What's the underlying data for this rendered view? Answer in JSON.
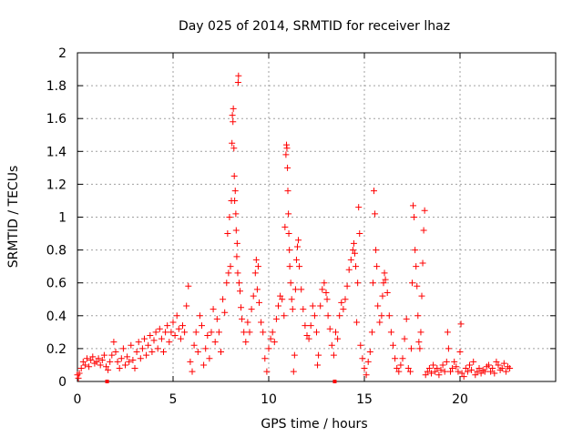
{
  "chart_data": {
    "type": "scatter",
    "title": "Day 025 of 2014, SRMTID for receiver lhaz",
    "xlabel": "GPS time / hours",
    "ylabel": "SRMTID / TECUs",
    "xlim": [
      0,
      25
    ],
    "ylim": [
      0,
      2
    ],
    "xticks": [
      0,
      5,
      10,
      15,
      20
    ],
    "xtick_labels": [
      "0",
      "5",
      "10",
      "15",
      "20"
    ],
    "yticks": [
      0,
      0.2,
      0.4,
      0.6,
      0.8,
      1,
      1.2,
      1.4,
      1.6,
      1.8,
      2
    ],
    "ytick_labels": [
      "0",
      "0.2",
      "0.4",
      "0.6",
      "0.8",
      "1",
      "1.2",
      "1.4",
      "1.6",
      "1.8",
      "2"
    ],
    "grid": true,
    "marker": "+",
    "color": "#ff0000",
    "series": [
      {
        "name": "SRMTID",
        "points": [
          [
            0.0,
            0.04
          ],
          [
            0.05,
            0.02
          ],
          [
            0.1,
            0.05
          ],
          [
            0.2,
            0.08
          ],
          [
            0.3,
            0.12
          ],
          [
            0.4,
            0.1
          ],
          [
            0.5,
            0.14
          ],
          [
            0.6,
            0.09
          ],
          [
            0.7,
            0.13
          ],
          [
            0.8,
            0.15
          ],
          [
            0.9,
            0.11
          ],
          [
            1.0,
            0.12
          ],
          [
            1.1,
            0.14
          ],
          [
            1.2,
            0.1
          ],
          [
            1.3,
            0.13
          ],
          [
            1.4,
            0.16
          ],
          [
            1.5,
            0.09
          ],
          [
            1.6,
            0.07
          ],
          [
            1.7,
            0.12
          ],
          [
            1.8,
            0.16
          ],
          [
            1.9,
            0.24
          ],
          [
            2.0,
            0.18
          ],
          [
            2.1,
            0.12
          ],
          [
            2.2,
            0.08
          ],
          [
            2.3,
            0.14
          ],
          [
            2.4,
            0.2
          ],
          [
            2.5,
            0.1
          ],
          [
            2.6,
            0.15
          ],
          [
            2.7,
            0.12
          ],
          [
            2.8,
            0.22
          ],
          [
            2.9,
            0.13
          ],
          [
            3.0,
            0.08
          ],
          [
            3.1,
            0.18
          ],
          [
            3.2,
            0.24
          ],
          [
            3.3,
            0.14
          ],
          [
            3.4,
            0.2
          ],
          [
            3.5,
            0.26
          ],
          [
            3.6,
            0.16
          ],
          [
            3.7,
            0.22
          ],
          [
            3.8,
            0.28
          ],
          [
            3.9,
            0.18
          ],
          [
            4.0,
            0.25
          ],
          [
            4.1,
            0.3
          ],
          [
            4.2,
            0.2
          ],
          [
            4.3,
            0.32
          ],
          [
            4.4,
            0.26
          ],
          [
            4.5,
            0.18
          ],
          [
            4.6,
            0.3
          ],
          [
            4.7,
            0.34
          ],
          [
            4.8,
            0.24
          ],
          [
            4.9,
            0.3
          ],
          [
            5.0,
            0.36
          ],
          [
            5.1,
            0.28
          ],
          [
            5.2,
            0.4
          ],
          [
            5.3,
            0.32
          ],
          [
            5.4,
            0.26
          ],
          [
            5.5,
            0.34
          ],
          [
            5.6,
            0.3
          ],
          [
            5.7,
            0.46
          ],
          [
            5.8,
            0.58
          ],
          [
            5.9,
            0.12
          ],
          [
            6.0,
            0.06
          ],
          [
            6.1,
            0.22
          ],
          [
            6.2,
            0.3
          ],
          [
            6.3,
            0.18
          ],
          [
            6.4,
            0.4
          ],
          [
            6.5,
            0.34
          ],
          [
            6.6,
            0.1
          ],
          [
            6.7,
            0.2
          ],
          [
            6.8,
            0.28
          ],
          [
            6.9,
            0.14
          ],
          [
            7.0,
            0.3
          ],
          [
            7.1,
            0.44
          ],
          [
            7.2,
            0.24
          ],
          [
            7.3,
            0.38
          ],
          [
            7.4,
            0.3
          ],
          [
            7.5,
            0.18
          ],
          [
            7.6,
            0.5
          ],
          [
            7.7,
            0.42
          ],
          [
            7.8,
            0.6
          ],
          [
            7.85,
            0.9
          ],
          [
            7.9,
            0.66
          ],
          [
            7.95,
            1.0
          ],
          [
            8.0,
            0.7
          ],
          [
            8.05,
            1.1
          ],
          [
            8.08,
            1.45
          ],
          [
            8.1,
            1.62
          ],
          [
            8.13,
            1.58
          ],
          [
            8.15,
            1.66
          ],
          [
            8.18,
            1.42
          ],
          [
            8.2,
            1.25
          ],
          [
            8.22,
            1.1
          ],
          [
            8.25,
            1.16
          ],
          [
            8.28,
            1.02
          ],
          [
            8.3,
            0.92
          ],
          [
            8.33,
            0.76
          ],
          [
            8.35,
            0.84
          ],
          [
            8.38,
            0.66
          ],
          [
            8.4,
            1.82
          ],
          [
            8.42,
            1.86
          ],
          [
            8.45,
            0.6
          ],
          [
            8.5,
            0.55
          ],
          [
            8.55,
            0.45
          ],
          [
            8.6,
            0.38
          ],
          [
            8.7,
            0.3
          ],
          [
            8.8,
            0.24
          ],
          [
            8.9,
            0.36
          ],
          [
            9.0,
            0.3
          ],
          [
            9.1,
            0.44
          ],
          [
            9.2,
            0.52
          ],
          [
            9.3,
            0.66
          ],
          [
            9.35,
            0.74
          ],
          [
            9.4,
            0.56
          ],
          [
            9.45,
            0.7
          ],
          [
            9.5,
            0.48
          ],
          [
            9.6,
            0.36
          ],
          [
            9.7,
            0.3
          ],
          [
            9.8,
            0.14
          ],
          [
            9.9,
            0.06
          ],
          [
            10.0,
            0.2
          ],
          [
            10.1,
            0.26
          ],
          [
            10.2,
            0.3
          ],
          [
            10.3,
            0.24
          ],
          [
            10.4,
            0.38
          ],
          [
            10.5,
            0.46
          ],
          [
            10.6,
            0.52
          ],
          [
            10.7,
            0.5
          ],
          [
            10.8,
            0.4
          ],
          [
            10.85,
            0.94
          ],
          [
            10.9,
            1.38
          ],
          [
            10.93,
            1.44
          ],
          [
            10.95,
            1.42
          ],
          [
            10.98,
            1.3
          ],
          [
            11.0,
            1.16
          ],
          [
            11.03,
            1.02
          ],
          [
            11.05,
            0.9
          ],
          [
            11.08,
            0.8
          ],
          [
            11.1,
            0.7
          ],
          [
            11.15,
            0.6
          ],
          [
            11.2,
            0.5
          ],
          [
            11.25,
            0.44
          ],
          [
            11.3,
            0.06
          ],
          [
            11.35,
            0.16
          ],
          [
            11.4,
            0.56
          ],
          [
            11.45,
            0.74
          ],
          [
            11.5,
            0.82
          ],
          [
            11.55,
            0.86
          ],
          [
            11.6,
            0.7
          ],
          [
            11.7,
            0.56
          ],
          [
            11.8,
            0.44
          ],
          [
            11.9,
            0.34
          ],
          [
            12.0,
            0.28
          ],
          [
            12.1,
            0.26
          ],
          [
            12.2,
            0.34
          ],
          [
            12.3,
            0.46
          ],
          [
            12.4,
            0.4
          ],
          [
            12.5,
            0.3
          ],
          [
            12.55,
            0.1
          ],
          [
            12.6,
            0.16
          ],
          [
            12.7,
            0.46
          ],
          [
            12.8,
            0.56
          ],
          [
            12.9,
            0.6
          ],
          [
            13.0,
            0.54
          ],
          [
            13.05,
            0.5
          ],
          [
            13.1,
            0.4
          ],
          [
            13.2,
            0.32
          ],
          [
            13.3,
            0.22
          ],
          [
            13.4,
            0.16
          ],
          [
            13.5,
            0.3
          ],
          [
            13.6,
            0.26
          ],
          [
            13.7,
            0.4
          ],
          [
            13.8,
            0.48
          ],
          [
            13.9,
            0.44
          ],
          [
            14.0,
            0.5
          ],
          [
            14.1,
            0.58
          ],
          [
            14.2,
            0.68
          ],
          [
            14.3,
            0.74
          ],
          [
            14.4,
            0.8
          ],
          [
            14.45,
            0.84
          ],
          [
            14.5,
            0.78
          ],
          [
            14.55,
            0.7
          ],
          [
            14.6,
            0.36
          ],
          [
            14.65,
            0.6
          ],
          [
            14.7,
            1.06
          ],
          [
            14.75,
            0.9
          ],
          [
            14.8,
            0.22
          ],
          [
            14.9,
            0.14
          ],
          [
            15.0,
            0.08
          ],
          [
            15.1,
            0.04
          ],
          [
            15.2,
            0.12
          ],
          [
            15.3,
            0.18
          ],
          [
            15.4,
            0.3
          ],
          [
            15.45,
            0.6
          ],
          [
            15.5,
            1.16
          ],
          [
            15.55,
            1.02
          ],
          [
            15.6,
            0.8
          ],
          [
            15.65,
            0.7
          ],
          [
            15.7,
            0.46
          ],
          [
            15.8,
            0.36
          ],
          [
            15.9,
            0.4
          ],
          [
            15.95,
            0.52
          ],
          [
            16.0,
            0.6
          ],
          [
            16.05,
            0.66
          ],
          [
            16.1,
            0.62
          ],
          [
            16.2,
            0.54
          ],
          [
            16.3,
            0.4
          ],
          [
            16.4,
            0.3
          ],
          [
            16.5,
            0.22
          ],
          [
            16.6,
            0.14
          ],
          [
            16.7,
            0.08
          ],
          [
            16.8,
            0.06
          ],
          [
            16.9,
            0.1
          ],
          [
            17.0,
            0.14
          ],
          [
            17.1,
            0.26
          ],
          [
            17.2,
            0.38
          ],
          [
            17.3,
            0.08
          ],
          [
            17.4,
            0.06
          ],
          [
            17.45,
            0.2
          ],
          [
            17.5,
            0.6
          ],
          [
            17.55,
            1.07
          ],
          [
            17.6,
            1.0
          ],
          [
            17.65,
            0.8
          ],
          [
            17.7,
            0.7
          ],
          [
            17.75,
            0.58
          ],
          [
            17.8,
            0.4
          ],
          [
            17.85,
            0.24
          ],
          [
            17.9,
            0.2
          ],
          [
            17.95,
            0.3
          ],
          [
            18.0,
            0.52
          ],
          [
            18.05,
            0.72
          ],
          [
            18.1,
            0.92
          ],
          [
            18.15,
            1.04
          ],
          [
            18.2,
            0.04
          ],
          [
            18.3,
            0.06
          ],
          [
            18.4,
            0.08
          ],
          [
            18.5,
            0.05
          ],
          [
            18.6,
            0.1
          ],
          [
            18.7,
            0.06
          ],
          [
            18.8,
            0.08
          ],
          [
            18.9,
            0.04
          ],
          [
            19.0,
            0.07
          ],
          [
            19.1,
            0.1
          ],
          [
            19.2,
            0.06
          ],
          [
            19.3,
            0.12
          ],
          [
            19.35,
            0.3
          ],
          [
            19.4,
            0.2
          ],
          [
            19.5,
            0.06
          ],
          [
            19.6,
            0.08
          ],
          [
            19.7,
            0.12
          ],
          [
            19.8,
            0.09
          ],
          [
            19.9,
            0.06
          ],
          [
            20.0,
            0.18
          ],
          [
            20.05,
            0.35
          ],
          [
            20.1,
            0.05
          ],
          [
            20.2,
            0.03
          ],
          [
            20.3,
            0.08
          ],
          [
            20.4,
            0.06
          ],
          [
            20.5,
            0.1
          ],
          [
            20.6,
            0.07
          ],
          [
            20.7,
            0.12
          ],
          [
            20.8,
            0.04
          ],
          [
            20.9,
            0.06
          ],
          [
            21.0,
            0.08
          ],
          [
            21.1,
            0.05
          ],
          [
            21.2,
            0.07
          ],
          [
            21.3,
            0.06
          ],
          [
            21.4,
            0.09
          ],
          [
            21.5,
            0.1
          ],
          [
            21.6,
            0.06
          ],
          [
            21.7,
            0.08
          ],
          [
            21.8,
            0.05
          ],
          [
            21.9,
            0.12
          ],
          [
            22.0,
            0.1
          ],
          [
            22.1,
            0.07
          ],
          [
            22.2,
            0.08
          ],
          [
            22.3,
            0.11
          ],
          [
            22.4,
            0.06
          ],
          [
            22.5,
            0.09
          ],
          [
            22.6,
            0.08
          ]
        ]
      }
    ],
    "below_axis_markers": [
      1.55,
      13.45
    ]
  }
}
